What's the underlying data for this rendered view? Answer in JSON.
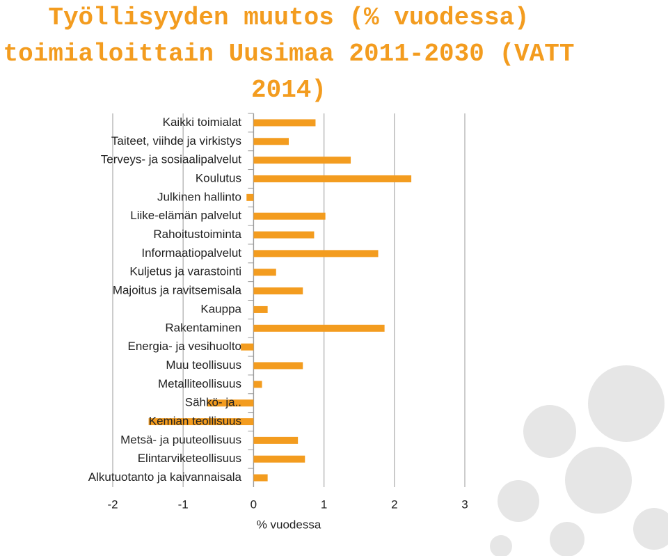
{
  "chart_data": {
    "type": "bar",
    "orientation": "horizontal",
    "title": "Työllisyyden muutos (% vuodessa) toimialoittain Uusimaa 2011-2030 (VATT 2014)",
    "x_label": "% vuodessa",
    "categories": [
      "Kaikki toimialat",
      "Taiteet, viihde ja virkistys",
      "Terveys- ja sosiaalipalvelut",
      "Koulutus",
      "Julkinen hallinto",
      "Liike-elämän palvelut",
      "Rahoitustoiminta",
      "Informaatiopalvelut",
      "Kuljetus ja varastointi",
      "Majoitus ja ravitsemisala",
      "Kauppa",
      "Rakentaminen",
      "Energia- ja vesihuolto",
      "Muu teollisuus",
      "Metalliteollisuus",
      "Sähkö- ja..",
      "Kemian teollisuus",
      "Metsä- ja puuteollisuus",
      "Elintarviketeollisuus",
      "Alkutuotanto ja kaivannaisala"
    ],
    "values": [
      0.88,
      0.5,
      1.38,
      2.24,
      -0.1,
      1.02,
      0.86,
      1.77,
      0.32,
      0.7,
      0.2,
      1.86,
      -0.18,
      0.7,
      0.12,
      -0.66,
      -1.49,
      0.63,
      0.73,
      0.2
    ],
    "color": "#f39c1f",
    "xlim": [
      -2,
      3
    ],
    "xticks": [
      -2,
      -1,
      0,
      1,
      2,
      3
    ],
    "grid": true
  }
}
